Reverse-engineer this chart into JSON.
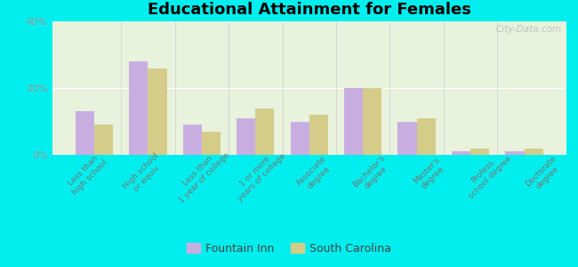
{
  "title": "Educational Attainment for Females",
  "categories": [
    "Less than\nhigh school",
    "High school\nor equiv.",
    "Less than\n1 year of college",
    "1 or more\nyears of college",
    "Associate\ndegree",
    "Bachelor's\ndegree",
    "Master's\ndegree",
    "Profess.\nschool degree",
    "Doctorate\ndegree"
  ],
  "fountain_inn": [
    13,
    28,
    9,
    11,
    10,
    20,
    10,
    1,
    1
  ],
  "south_carolina": [
    9,
    26,
    7,
    14,
    12,
    20,
    11,
    2,
    2
  ],
  "fountain_inn_color": "#c8aee0",
  "south_carolina_color": "#d4cc88",
  "background_color": "#00eeee",
  "plot_bg_color": "#e8f2dc",
  "ylim": [
    0,
    40
  ],
  "yticks": [
    0,
    20,
    40
  ],
  "ytick_labels": [
    "0%",
    "20%",
    "40%"
  ],
  "watermark": "City-Data.com",
  "legend_labels": [
    "Fountain Inn",
    "South Carolina"
  ],
  "bar_width": 0.35
}
